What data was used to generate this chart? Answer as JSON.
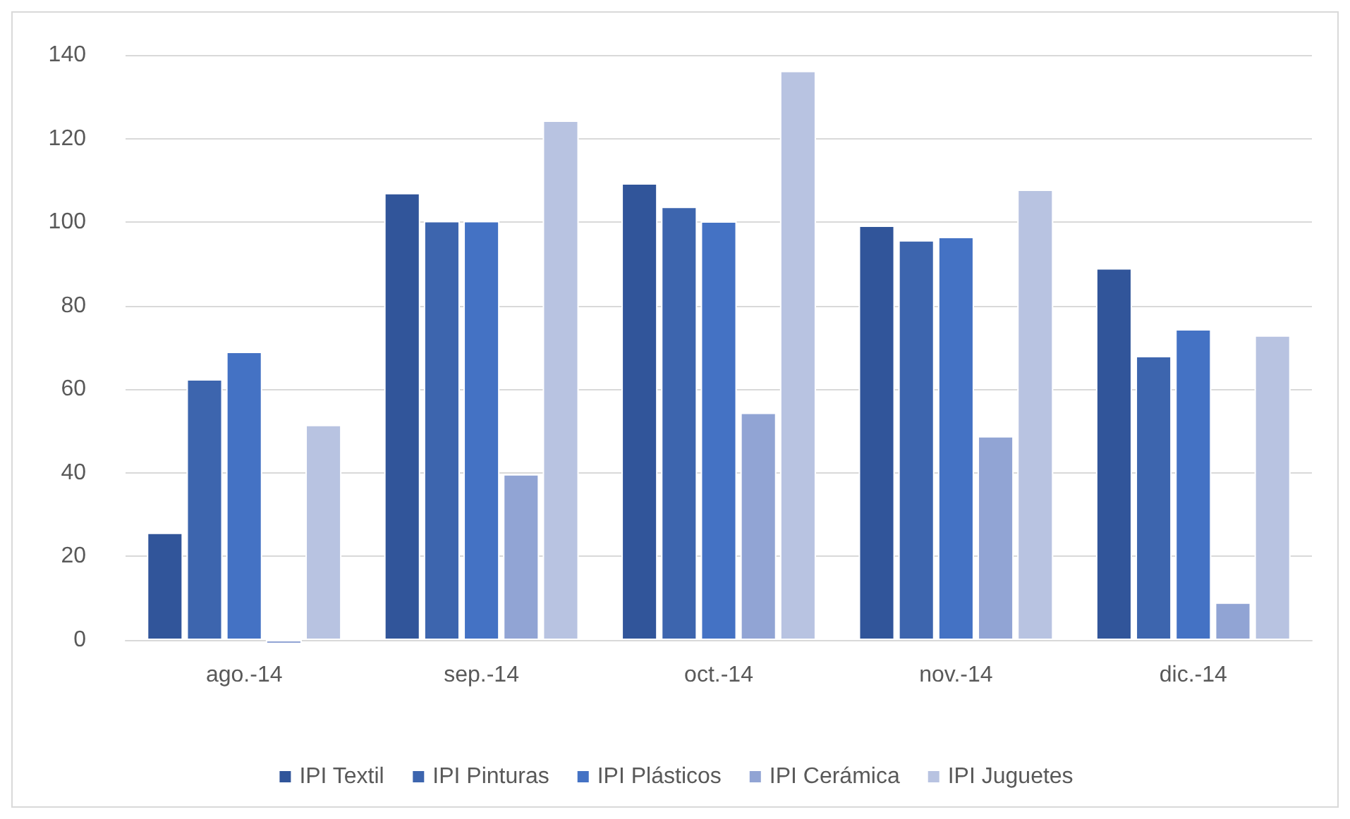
{
  "chart_data": {
    "type": "bar",
    "categories": [
      "ago.-14",
      "sep.-14",
      "oct.-14",
      "nov.-14",
      "dic.-14"
    ],
    "series": [
      {
        "name": "IPI Textil",
        "color": "#31559a",
        "values": [
          25.7,
          107,
          109.3,
          99.2,
          89
        ]
      },
      {
        "name": "IPI Pinturas",
        "color": "#3d65ae",
        "values": [
          62.4,
          100.3,
          103.7,
          95.7,
          68
        ]
      },
      {
        "name": "IPI Plásticos",
        "color": "#4472c4",
        "values": [
          69,
          100.3,
          100.2,
          96.5,
          74.4
        ]
      },
      {
        "name": "IPI Cerámica",
        "color": "#91a4d4",
        "values": [
          -1,
          39.7,
          54.4,
          48.8,
          9
        ]
      },
      {
        "name": "IPI Juguetes",
        "color": "#b8c3e1",
        "values": [
          51.5,
          124.3,
          136.2,
          107.8,
          72.9
        ]
      }
    ],
    "ylim": [
      -1,
      140
    ],
    "yticks": [
      0,
      20,
      40,
      60,
      80,
      100,
      120,
      140
    ],
    "grid": "y",
    "legend": "bottom"
  }
}
